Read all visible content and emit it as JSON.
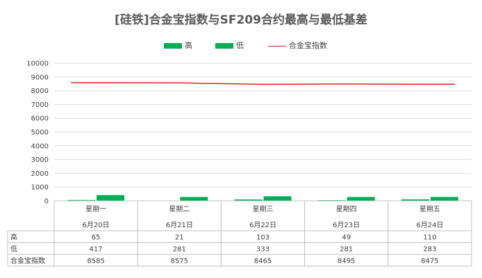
{
  "chart_data": {
    "type": "bar",
    "title": "[硅铁]合金宝指数与SF209合约最高与最低基差",
    "categories": [
      "星期一",
      "星期二",
      "星期三",
      "星期四",
      "星期五"
    ],
    "dates": [
      "6月20日",
      "6月21日",
      "6月22日",
      "6月23日",
      "6月24日"
    ],
    "ylim": [
      0,
      10000
    ],
    "yticks": [
      0,
      1000,
      2000,
      3000,
      4000,
      5000,
      6000,
      7000,
      8000,
      9000,
      10000
    ],
    "grid": true,
    "legend_position": "top",
    "series": [
      {
        "name": "高",
        "kind": "bar",
        "color": "#00b050",
        "values": [
          65,
          21,
          103,
          49,
          110
        ]
      },
      {
        "name": "低",
        "kind": "bar",
        "color": "#00b050",
        "values": [
          417,
          281,
          333,
          281,
          283
        ]
      },
      {
        "name": "合金宝指数",
        "kind": "line",
        "color": "#e0201f",
        "values": [
          8585,
          8575,
          8465,
          8495,
          8475
        ]
      }
    ]
  }
}
